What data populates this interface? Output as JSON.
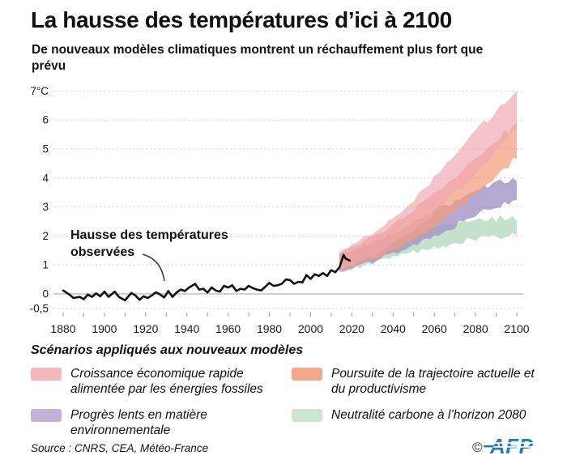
{
  "header": {
    "title": "La hausse des températures d’ici à 2100",
    "subtitle": "De nouveaux modèles climatiques montrent un réchauffement plus fort que prévu"
  },
  "chart_data": {
    "type": "area",
    "title": "La hausse des températures d’ici à 2100",
    "xlabel": "",
    "ylabel": "°C",
    "xlim": [
      1880,
      2100
    ],
    "ylim": [
      -0.5,
      7
    ],
    "grid": "dashed horizontal",
    "x_minor_step": 10,
    "annotation": "Hausse des températures observées",
    "yticks": [
      {
        "label": "7°C",
        "value": 7
      },
      {
        "label": "6",
        "value": 6
      },
      {
        "label": "5",
        "value": 5
      },
      {
        "label": "4",
        "value": 4
      },
      {
        "label": "3",
        "value": 3
      },
      {
        "label": "2",
        "value": 2
      },
      {
        "label": "1",
        "value": 1
      },
      {
        "label": "0",
        "value": 0
      },
      {
        "label": "-0,5",
        "value": -0.5
      }
    ],
    "xticks": [
      {
        "label": "1880",
        "value": 1880
      },
      {
        "label": "1900",
        "value": 1900
      },
      {
        "label": "1920",
        "value": 1920
      },
      {
        "label": "1940",
        "value": 1940
      },
      {
        "label": "1960",
        "value": 1960
      },
      {
        "label": "1980",
        "value": 1980
      },
      {
        "label": "2000",
        "value": 2000
      },
      {
        "label": "2020",
        "value": 2020
      },
      {
        "label": "2040",
        "value": 2040
      },
      {
        "label": "2060",
        "value": 2060
      },
      {
        "label": "2080",
        "value": 2080
      },
      {
        "label": "2100",
        "value": 2100
      }
    ],
    "observed": {
      "name": "Hausse des températures observées",
      "color": "#141414",
      "points": [
        [
          1880,
          0.12
        ],
        [
          1883,
          -0.02
        ],
        [
          1885,
          -0.14
        ],
        [
          1888,
          -0.1
        ],
        [
          1890,
          -0.18
        ],
        [
          1892,
          -0.02
        ],
        [
          1894,
          -0.1
        ],
        [
          1896,
          0.02
        ],
        [
          1898,
          -0.08
        ],
        [
          1900,
          0.08
        ],
        [
          1902,
          -0.1
        ],
        [
          1905,
          0.08
        ],
        [
          1907,
          -0.1
        ],
        [
          1910,
          -0.22
        ],
        [
          1913,
          0.03
        ],
        [
          1915,
          -0.05
        ],
        [
          1917,
          -0.2
        ],
        [
          1919,
          -0.08
        ],
        [
          1921,
          -0.14
        ],
        [
          1923,
          -0.05
        ],
        [
          1925,
          0.06
        ],
        [
          1927,
          -0.02
        ],
        [
          1929,
          -0.12
        ],
        [
          1931,
          0.1
        ],
        [
          1933,
          -0.1
        ],
        [
          1935,
          0.05
        ],
        [
          1937,
          0.15
        ],
        [
          1939,
          0.1
        ],
        [
          1941,
          0.22
        ],
        [
          1944,
          0.35
        ],
        [
          1946,
          0.15
        ],
        [
          1948,
          0.18
        ],
        [
          1950,
          0.05
        ],
        [
          1952,
          0.22
        ],
        [
          1954,
          0.12
        ],
        [
          1956,
          0.08
        ],
        [
          1958,
          0.28
        ],
        [
          1960,
          0.22
        ],
        [
          1962,
          0.3
        ],
        [
          1964,
          0.1
        ],
        [
          1966,
          0.18
        ],
        [
          1968,
          0.15
        ],
        [
          1970,
          0.28
        ],
        [
          1972,
          0.2
        ],
        [
          1974,
          0.15
        ],
        [
          1976,
          0.12
        ],
        [
          1978,
          0.25
        ],
        [
          1980,
          0.38
        ],
        [
          1982,
          0.28
        ],
        [
          1984,
          0.3
        ],
        [
          1986,
          0.35
        ],
        [
          1988,
          0.5
        ],
        [
          1990,
          0.48
        ],
        [
          1992,
          0.35
        ],
        [
          1994,
          0.42
        ],
        [
          1996,
          0.4
        ],
        [
          1998,
          0.65
        ],
        [
          2000,
          0.52
        ],
        [
          2002,
          0.68
        ],
        [
          2004,
          0.62
        ],
        [
          2006,
          0.72
        ],
        [
          2008,
          0.62
        ],
        [
          2010,
          0.82
        ],
        [
          2012,
          0.75
        ],
        [
          2014,
          0.92
        ],
        [
          2016,
          1.35
        ],
        [
          2017,
          1.22
        ],
        [
          2019,
          1.15
        ]
      ]
    },
    "scenarios": [
      {
        "name": "Croissance économique rapide alimentée par les énergies fossiles",
        "color": "#f0a5b0",
        "band_low_high_by_year": [
          [
            2014,
            0.85,
            1.45
          ],
          [
            2020,
            1.0,
            1.7
          ],
          [
            2030,
            1.3,
            2.1
          ],
          [
            2040,
            1.7,
            2.65
          ],
          [
            2050,
            2.2,
            3.25
          ],
          [
            2060,
            2.8,
            4.0
          ],
          [
            2070,
            3.45,
            4.8
          ],
          [
            2080,
            4.15,
            5.6
          ],
          [
            2090,
            4.95,
            6.3
          ],
          [
            2100,
            5.8,
            7.0
          ]
        ]
      },
      {
        "name": "Poursuite de la trajectoire actuelle et du productivisme",
        "color": "#f29d7d",
        "band_low_high_by_year": [
          [
            2014,
            0.8,
            1.4
          ],
          [
            2020,
            0.95,
            1.6
          ],
          [
            2030,
            1.2,
            1.95
          ],
          [
            2040,
            1.5,
            2.4
          ],
          [
            2050,
            1.9,
            2.9
          ],
          [
            2060,
            2.35,
            3.5
          ],
          [
            2070,
            2.85,
            4.05
          ],
          [
            2080,
            3.45,
            4.65
          ],
          [
            2090,
            4.05,
            5.3
          ],
          [
            2100,
            4.7,
            5.9
          ]
        ]
      },
      {
        "name": "Progrès lents en matière environnementale",
        "color": "#a294c6",
        "band_low_high_by_year": [
          [
            2014,
            0.78,
            1.38
          ],
          [
            2020,
            0.9,
            1.5
          ],
          [
            2030,
            1.1,
            1.8
          ],
          [
            2040,
            1.4,
            2.1
          ],
          [
            2050,
            1.7,
            2.5
          ],
          [
            2060,
            2.0,
            2.85
          ],
          [
            2070,
            2.35,
            3.2
          ],
          [
            2080,
            2.7,
            3.55
          ],
          [
            2090,
            3.0,
            3.8
          ],
          [
            2100,
            3.3,
            4.0
          ]
        ]
      },
      {
        "name": "Neutralité carbone à l’horizon 2080",
        "color": "#bedec6",
        "band_low_high_by_year": [
          [
            2014,
            0.75,
            1.35
          ],
          [
            2020,
            0.85,
            1.45
          ],
          [
            2030,
            1.05,
            1.7
          ],
          [
            2040,
            1.25,
            1.9
          ],
          [
            2050,
            1.45,
            2.1
          ],
          [
            2060,
            1.6,
            2.3
          ],
          [
            2070,
            1.75,
            2.45
          ],
          [
            2080,
            1.9,
            2.55
          ],
          [
            2090,
            1.95,
            2.6
          ],
          [
            2100,
            2.0,
            2.6
          ]
        ]
      }
    ]
  },
  "legend": {
    "title": "Scénarios appliqués aux nouveaux modèles",
    "items": [
      {
        "label": "Croissance économique rapide alimentée par les énergies fossiles",
        "color": "#f4b6bd"
      },
      {
        "label": "Poursuite de la trajectoire actuelle et du productivisme",
        "color": "#f4a78b"
      },
      {
        "label": "Progrès lents en matière environnementale",
        "color": "#c2b3d6"
      },
      {
        "label": "Neutralité carbone à l’horizon 2080",
        "color": "#cde5d3"
      }
    ]
  },
  "footer": {
    "source": "Source : CNRS, CEA, Météo-France",
    "credit": "©",
    "logo": "AFP",
    "logo_color": "#2779bd"
  }
}
